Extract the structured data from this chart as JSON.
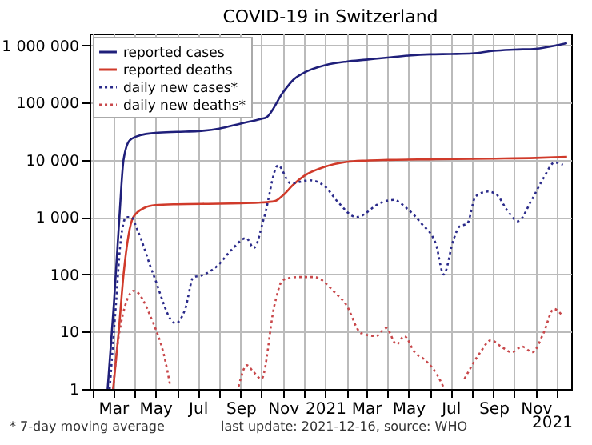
{
  "chart_data": {
    "type": "line",
    "title": "COVID-19 in Switzerland",
    "xlim": [
      "2020-01-27",
      "2021-12-22"
    ],
    "xticks": [
      {
        "value": "2020-02-01",
        "label": null
      },
      {
        "value": "2020-03-01",
        "label": "Mar"
      },
      {
        "value": "2020-04-01",
        "label": null
      },
      {
        "value": "2020-05-01",
        "label": "May"
      },
      {
        "value": "2020-06-01",
        "label": null
      },
      {
        "value": "2020-07-01",
        "label": "Jul"
      },
      {
        "value": "2020-08-01",
        "label": null
      },
      {
        "value": "2020-09-01",
        "label": "Sep"
      },
      {
        "value": "2020-10-01",
        "label": null
      },
      {
        "value": "2020-11-01",
        "label": "Nov"
      },
      {
        "value": "2020-12-01",
        "label": null
      },
      {
        "value": "2021-01-01",
        "label": "2021"
      },
      {
        "value": "2021-02-01",
        "label": null
      },
      {
        "value": "2021-03-01",
        "label": "Mar"
      },
      {
        "value": "2021-04-01",
        "label": null
      },
      {
        "value": "2021-05-01",
        "label": "May"
      },
      {
        "value": "2021-06-01",
        "label": null
      },
      {
        "value": "2021-07-01",
        "label": "Jul"
      },
      {
        "value": "2021-08-01",
        "label": null
      },
      {
        "value": "2021-09-01",
        "label": "Sep"
      },
      {
        "value": "2021-10-01",
        "label": null
      },
      {
        "value": "2021-11-01",
        "label": "Nov"
      },
      {
        "value": "2021-12-01",
        "label": null
      }
    ],
    "ylim": [
      1,
      1600000
    ],
    "yticks": [
      1,
      10,
      100,
      {
        "value": 1000,
        "label": "1 000"
      },
      {
        "value": 10000,
        "label": "10 000"
      },
      {
        "value": 100000,
        "label": "100 000"
      },
      {
        "value": 1000000,
        "label": "1 000 000"
      }
    ],
    "log": "y",
    "grid": true,
    "legend": "top left",
    "annotations": [
      "* 7-day moving average",
      "last update: 2021-12-16, source: WHO",
      "2021"
    ],
    "series": [
      {
        "name": "reported cases",
        "color": "#1f1f7a",
        "line_style": "solid",
        "x": [
          "2020-02-22",
          "2020-03-02",
          "2020-03-10",
          "2020-03-16",
          "2020-03-25",
          "2020-04-10",
          "2020-05-01",
          "2020-06-01",
          "2020-07-01",
          "2020-08-01",
          "2020-09-01",
          "2020-10-01",
          "2020-10-08",
          "2020-11-01",
          "2020-11-16",
          "2020-12-01",
          "2021-01-01",
          "2021-02-01",
          "2021-03-01",
          "2021-04-01",
          "2021-05-01",
          "2021-06-01",
          "2021-07-01",
          "2021-08-01",
          "2021-09-01",
          "2021-10-01",
          "2021-11-01",
          "2021-12-01",
          "2021-12-16"
        ],
        "values": [
          1,
          30,
          1000,
          10000,
          22000,
          27000,
          29500,
          30800,
          31700,
          35000,
          43000,
          52000,
          55000,
          150000,
          250000,
          330000,
          450000,
          520000,
          560000,
          610000,
          660000,
          695000,
          705000,
          720000,
          800000,
          840000,
          870000,
          1000000,
          1100000
        ]
      },
      {
        "name": "reported deaths",
        "color": "#d03a2a",
        "line_style": "solid",
        "x": [
          "2020-03-01",
          "2020-03-09",
          "2020-03-16",
          "2020-03-30",
          "2020-04-15",
          "2020-05-01",
          "2020-06-01",
          "2020-08-01",
          "2020-09-01",
          "2020-10-01",
          "2020-10-20",
          "2020-11-01",
          "2020-11-15",
          "2020-12-01",
          "2021-01-01",
          "2021-02-01",
          "2021-03-01",
          "2021-04-01",
          "2021-06-01",
          "2021-09-01",
          "2021-11-01",
          "2021-12-16"
        ],
        "values": [
          1,
          10,
          100,
          1000,
          1450,
          1620,
          1680,
          1720,
          1750,
          1800,
          1900,
          2400,
          3600,
          5200,
          7600,
          9200,
          9700,
          9950,
          10200,
          10500,
          10800,
          11300
        ]
      },
      {
        "name": "daily new cases*",
        "color": "#2a2a8a",
        "line_style": "dotted",
        "x": [
          "2020-02-25",
          "2020-03-05",
          "2020-03-12",
          "2020-03-20",
          "2020-03-27",
          "2020-04-05",
          "2020-04-28",
          "2020-05-30",
          "2020-06-13",
          "2020-06-25",
          "2020-07-05",
          "2020-07-29",
          "2020-08-19",
          "2020-09-09",
          "2020-09-20",
          "2020-10-05",
          "2020-10-25",
          "2020-11-12",
          "2020-12-10",
          "2021-01-01",
          "2021-01-20",
          "2021-02-15",
          "2021-03-23",
          "2021-04-10",
          "2021-04-28",
          "2021-05-20",
          "2021-06-10",
          "2021-06-21",
          "2021-07-05",
          "2021-07-14",
          "2021-07-25",
          "2021-08-06",
          "2021-08-24",
          "2021-09-05",
          "2021-09-21",
          "2021-10-06",
          "2021-10-26",
          "2021-11-12",
          "2021-11-28",
          "2021-12-10"
        ],
        "values": [
          1,
          30,
          400,
          1000,
          1000,
          600,
          100,
          14,
          25,
          90,
          95,
          140,
          270,
          430,
          290,
          1000,
          8000,
          3900,
          4400,
          3400,
          1800,
          1000,
          1800,
          2000,
          1450,
          770,
          330,
          100,
          400,
          690,
          770,
          2300,
          2800,
          2500,
          1300,
          850,
          2000,
          4800,
          9000,
          8200
        ]
      },
      {
        "name": "daily new deaths*",
        "color": "#c8474a",
        "line_style": "dotted",
        "x": [
          "2020-03-01",
          "2020-03-10",
          "2020-03-31",
          "2020-04-26",
          "2020-05-15",
          "2020-05-22",
          "2020-06-15",
          "2020-08-29",
          "2020-09-10",
          "2020-09-18",
          "2020-10-01",
          "2020-10-20",
          "2020-11-01",
          "2020-11-23",
          "2020-12-16",
          "2021-01-16",
          "2021-01-31",
          "2021-02-22",
          "2021-03-15",
          "2021-03-30",
          "2021-04-14",
          "2021-04-25",
          "2021-05-10",
          "2021-05-25",
          "2021-06-10",
          "2021-06-22",
          "2021-07-10",
          "2021-07-21",
          "2021-08-13",
          "2021-08-28",
          "2021-09-12",
          "2021-09-27",
          "2021-10-12",
          "2021-10-27",
          "2021-11-12",
          "2021-11-27",
          "2021-12-08"
        ],
        "values": [
          1,
          10,
          52,
          16,
          3.2,
          1.2,
          null,
          1.1,
          2.6,
          2.1,
          1.5,
          30,
          80,
          90,
          90,
          47,
          30,
          9.4,
          8.4,
          11.6,
          6,
          8.4,
          4.4,
          3.2,
          1.9,
          1,
          null,
          1.5,
          4.4,
          7.1,
          5.5,
          4.4,
          5.5,
          4.4,
          9.4,
          25,
          20
        ]
      }
    ]
  }
}
